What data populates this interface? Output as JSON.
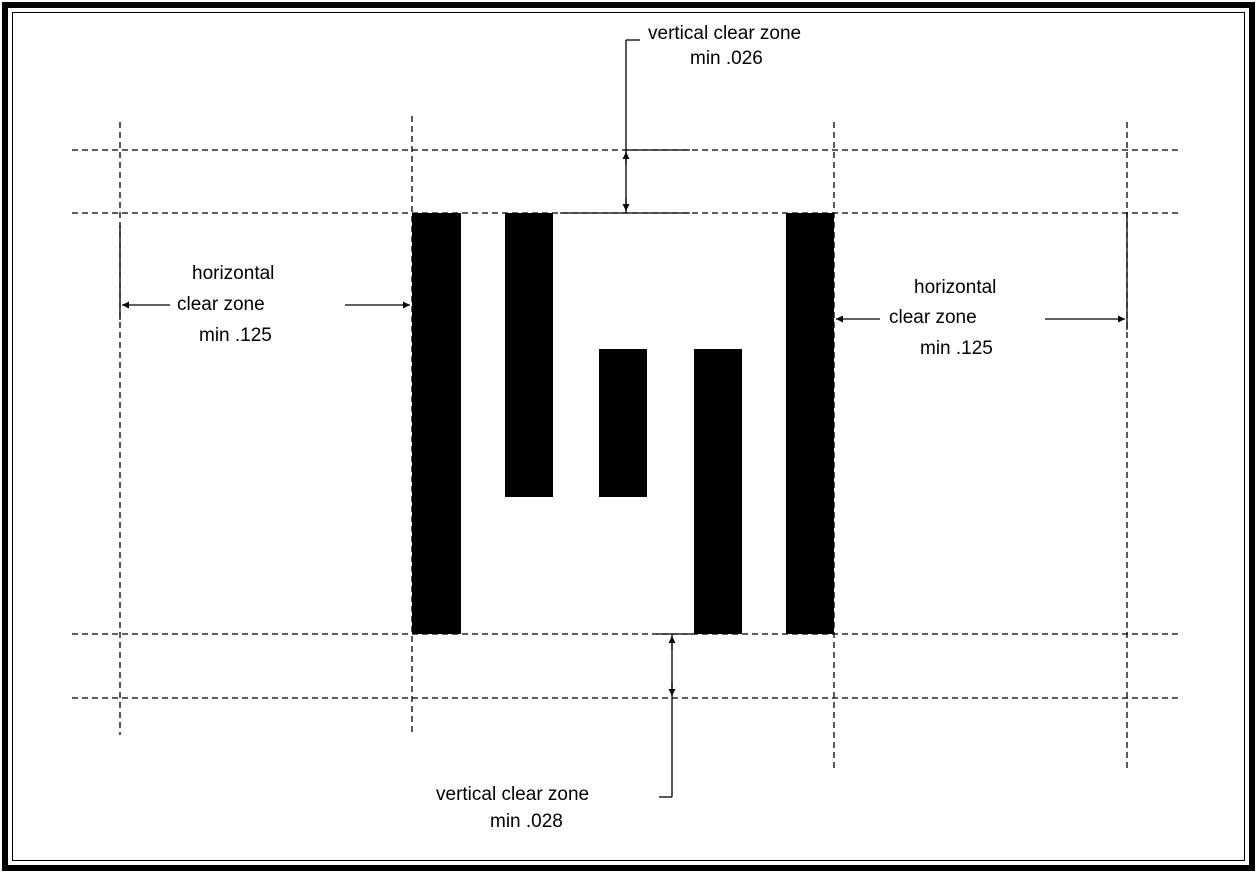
{
  "colors": {
    "ink": "#000000",
    "background": "#ffffff"
  },
  "labels": {
    "top_vertical": {
      "line1": "vertical clear zone",
      "line2": "min .026"
    },
    "bottom_vertical": {
      "line1": "vertical clear zone",
      "line2": "min .028"
    },
    "left_horizontal": {
      "line1": "horizontal",
      "line2": "clear zone",
      "line3": "min .125"
    },
    "right_horizontal": {
      "line1": "horizontal",
      "line2": "clear zone",
      "line3": "min .125"
    }
  }
}
